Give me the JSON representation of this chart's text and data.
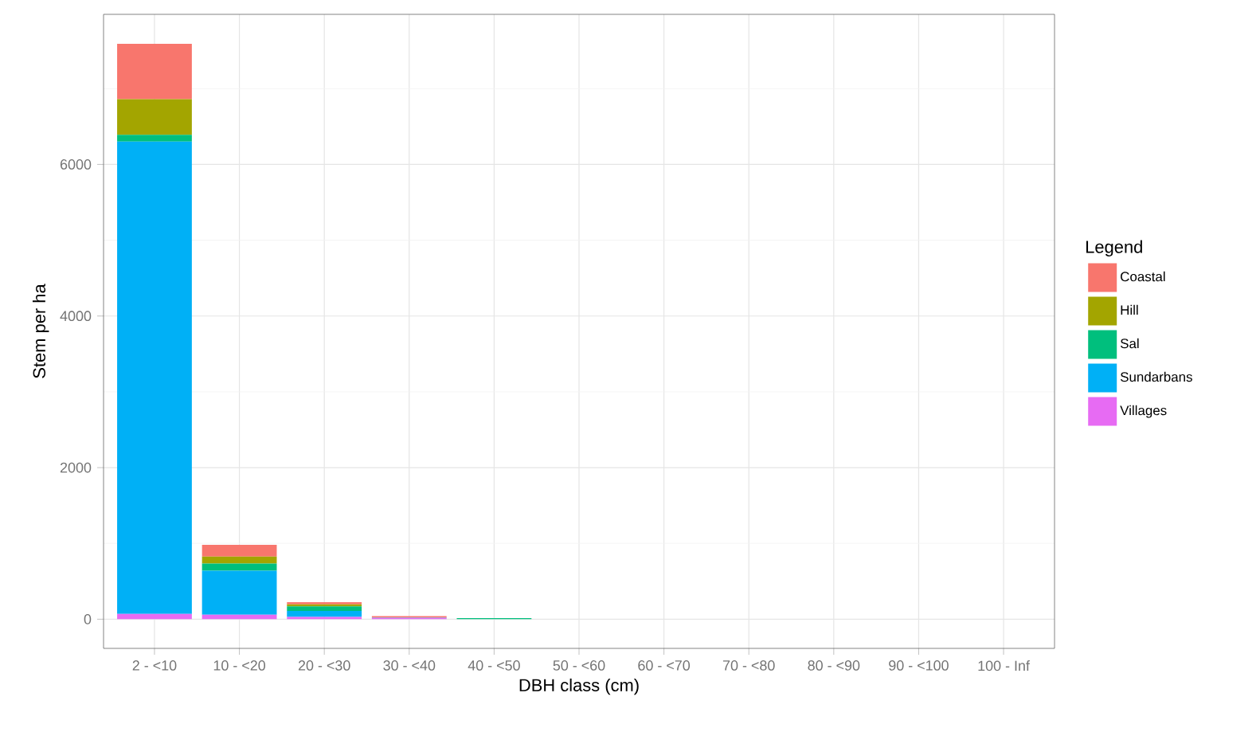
{
  "chart_data": {
    "type": "bar",
    "stacked": true,
    "xlabel": "DBH class (cm)",
    "ylabel": "Stem per ha",
    "legend_title": "Legend",
    "categories": [
      "2 - <10",
      "10 - <20",
      "20 - <30",
      "30 - <40",
      "40 - <50",
      "50 - <60",
      "60 - <70",
      "70 - <80",
      "80 - <90",
      "90 - <100",
      "100 - Inf"
    ],
    "series": [
      {
        "name": "Villages",
        "color": "#e76bf3",
        "values": [
          70,
          60,
          30,
          20,
          0,
          0,
          0,
          0,
          0,
          0,
          0
        ]
      },
      {
        "name": "Sundarbans",
        "color": "#00b0f6",
        "values": [
          6230,
          580,
          80,
          0,
          0,
          0,
          0,
          0,
          0,
          0,
          0
        ]
      },
      {
        "name": "Sal",
        "color": "#00bf7d",
        "values": [
          90,
          95,
          60,
          5,
          15,
          0,
          0,
          0,
          0,
          0,
          0
        ]
      },
      {
        "name": "Hill",
        "color": "#a3a500",
        "values": [
          470,
          90,
          25,
          0,
          0,
          0,
          0,
          0,
          0,
          0,
          0
        ]
      },
      {
        "name": "Coastal",
        "color": "#f8766d",
        "values": [
          730,
          155,
          30,
          15,
          0,
          0,
          0,
          0,
          0,
          0,
          0
        ]
      }
    ],
    "ylim": [
      -385,
      7980
    ],
    "yticks": [
      0,
      2000,
      4000,
      6000
    ],
    "grid": true,
    "legend": "right"
  }
}
